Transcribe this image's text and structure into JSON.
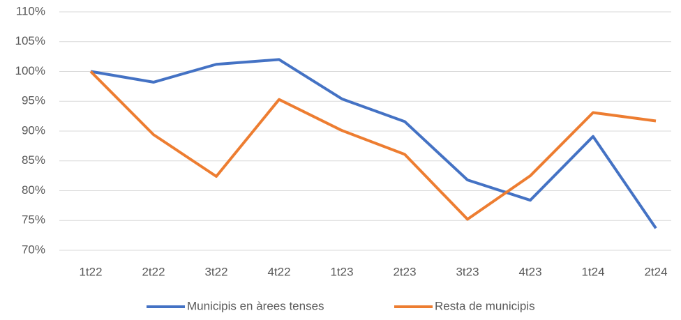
{
  "chart_data": {
    "type": "line",
    "categories": [
      "1t22",
      "2t22",
      "3t22",
      "4t22",
      "1t23",
      "2t23",
      "3t23",
      "4t23",
      "1t24",
      "2t24"
    ],
    "series": [
      {
        "name": "Municipis en àrees tenses",
        "color": "#4472c4",
        "values": [
          100,
          98.2,
          101.2,
          102,
          95.4,
          91.6,
          81.8,
          78.4,
          89.1,
          73.7
        ]
      },
      {
        "name": "Resta de municipis",
        "color": "#ed7d31",
        "values": [
          100,
          89.4,
          82.4,
          95.3,
          90.1,
          86.1,
          75.2,
          82.5,
          93.1,
          91.7
        ]
      }
    ],
    "ylim": [
      70,
      110
    ],
    "yticks": [
      {
        "value": 70,
        "label": "70%"
      },
      {
        "value": 75,
        "label": "75%"
      },
      {
        "value": 80,
        "label": "80%"
      },
      {
        "value": 85,
        "label": "85%"
      },
      {
        "value": 90,
        "label": "90%"
      },
      {
        "value": 95,
        "label": "95%"
      },
      {
        "value": 100,
        "label": "100%"
      },
      {
        "value": 105,
        "label": "105%"
      },
      {
        "value": 110,
        "label": "110%"
      }
    ],
    "grid": true,
    "legend": "bottom"
  }
}
